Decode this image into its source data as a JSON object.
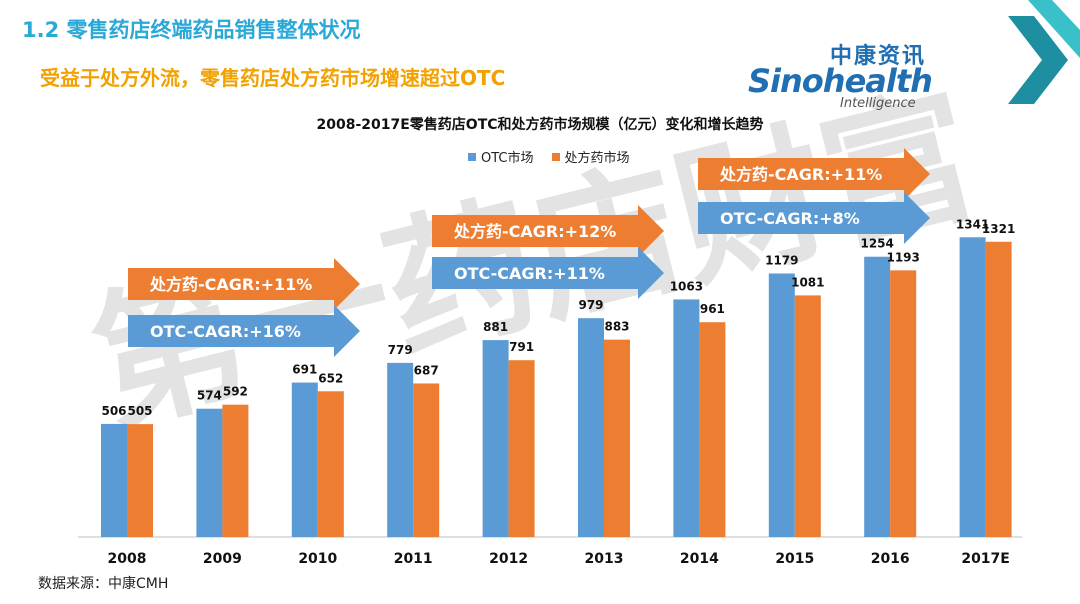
{
  "header": {
    "section_title": "1.2 零售药店终端药品销售整体状况",
    "subtitle": "受益于处方外流，零售药店处方药市场增速超过OTC"
  },
  "logo": {
    "cn": "中康资讯",
    "en": "Sinohealth",
    "sub": "Intelligence"
  },
  "source": "数据来源：中康CMH",
  "colors": {
    "otc": "#5b9bd5",
    "rx": "#ed7d31",
    "accent": "#2aa8d8",
    "subtitle": "#f2a100"
  },
  "chart_data": {
    "type": "bar",
    "title": "2008-2017E零售药店OTC和处方药市场规模（亿元）变化和增长趋势",
    "categories": [
      "2008",
      "2009",
      "2010",
      "2011",
      "2012",
      "2013",
      "2014",
      "2015",
      "2016",
      "2017E"
    ],
    "series": [
      {
        "name": "OTC市场",
        "values": [
          506,
          574,
          691,
          779,
          881,
          979,
          1063,
          1179,
          1254,
          1341
        ]
      },
      {
        "name": "处方药市场",
        "values": [
          505,
          592,
          652,
          687,
          791,
          883,
          961,
          1081,
          1193,
          1321
        ]
      }
    ],
    "ylim": [
      0,
      1600
    ],
    "xlabel": "",
    "ylabel": "",
    "annotations": [
      {
        "text": "处方药-CAGR:+11%",
        "series": "处方药市场",
        "span": [
          "2008",
          "2011"
        ]
      },
      {
        "text": "OTC-CAGR:+16%",
        "series": "OTC市场",
        "span": [
          "2008",
          "2011"
        ]
      },
      {
        "text": "处方药-CAGR:+12%",
        "series": "处方药市场",
        "span": [
          "2012",
          "2014"
        ]
      },
      {
        "text": "OTC-CAGR:+11%",
        "series": "OTC市场",
        "span": [
          "2012",
          "2014"
        ]
      },
      {
        "text": "处方药-CAGR:+11%",
        "series": "处方药市场",
        "span": [
          "2015",
          "2017E"
        ]
      },
      {
        "text": "OTC-CAGR:+8%",
        "series": "OTC市场",
        "span": [
          "2015",
          "2017E"
        ]
      }
    ]
  }
}
